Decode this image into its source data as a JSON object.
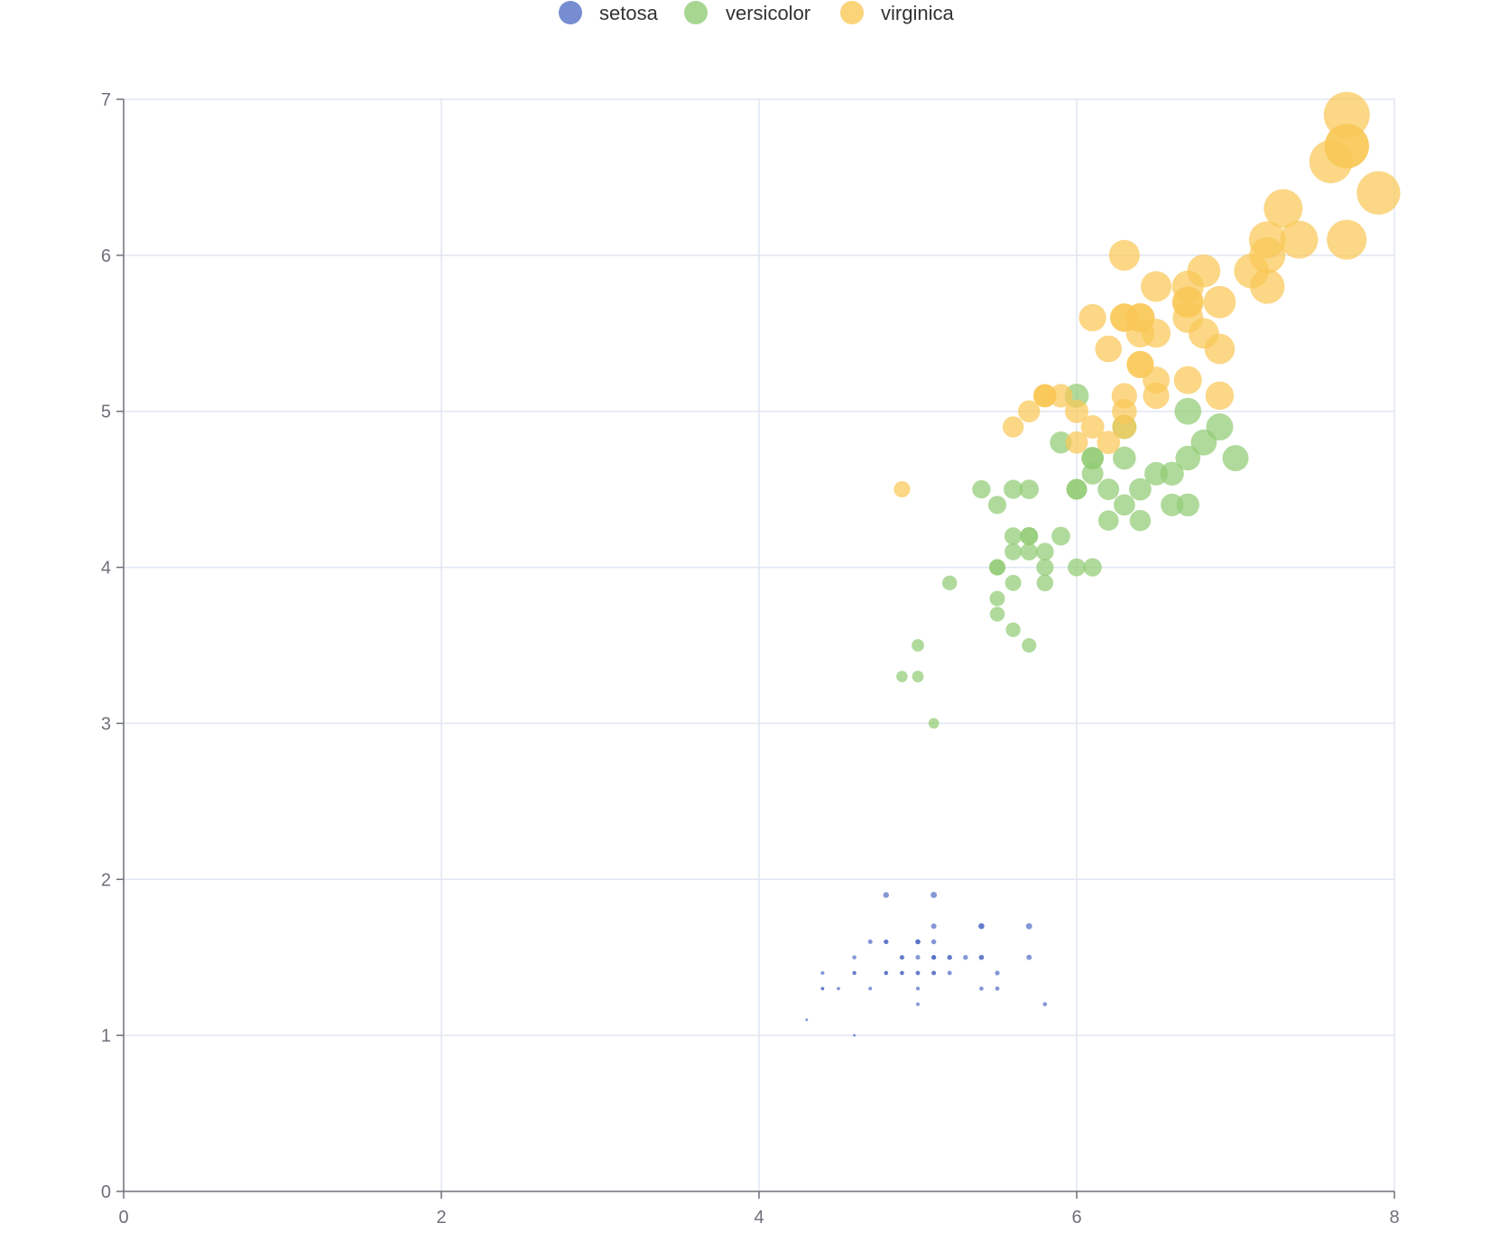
{
  "chart_data": {
    "type": "scatter",
    "title": "",
    "xlabel": "",
    "ylabel": "",
    "xlim": [
      0,
      8
    ],
    "ylim": [
      0,
      7
    ],
    "x_ticks": [
      "0",
      "2",
      "4",
      "6",
      "8"
    ],
    "y_ticks": [
      "0",
      "1",
      "2",
      "3",
      "4",
      "5",
      "6",
      "7"
    ],
    "grid": true,
    "legend_position": "top-center",
    "encoding": {
      "x": "sepal length",
      "y": "petal length",
      "size": "product of sepal length and petal length"
    },
    "series": [
      {
        "name": "setosa",
        "color": "#5470c6",
        "points": [
          [
            5.1,
            1.4
          ],
          [
            4.9,
            1.4
          ],
          [
            4.7,
            1.3
          ],
          [
            4.6,
            1.5
          ],
          [
            5.0,
            1.4
          ],
          [
            5.4,
            1.7
          ],
          [
            4.6,
            1.4
          ],
          [
            5.0,
            1.5
          ],
          [
            4.4,
            1.4
          ],
          [
            4.9,
            1.5
          ],
          [
            5.4,
            1.5
          ],
          [
            4.8,
            1.6
          ],
          [
            4.8,
            1.4
          ],
          [
            4.3,
            1.1
          ],
          [
            5.8,
            1.2
          ],
          [
            5.7,
            1.5
          ],
          [
            5.4,
            1.3
          ],
          [
            5.1,
            1.4
          ],
          [
            5.7,
            1.7
          ],
          [
            5.1,
            1.5
          ],
          [
            5.4,
            1.7
          ],
          [
            5.1,
            1.5
          ],
          [
            4.6,
            1.0
          ],
          [
            5.1,
            1.7
          ],
          [
            4.8,
            1.9
          ],
          [
            5.0,
            1.6
          ],
          [
            5.0,
            1.6
          ],
          [
            5.2,
            1.5
          ],
          [
            5.2,
            1.4
          ],
          [
            4.7,
            1.6
          ],
          [
            4.8,
            1.6
          ],
          [
            5.4,
            1.5
          ],
          [
            5.2,
            1.5
          ],
          [
            5.5,
            1.4
          ],
          [
            4.9,
            1.5
          ],
          [
            5.0,
            1.2
          ],
          [
            5.5,
            1.3
          ],
          [
            4.9,
            1.4
          ],
          [
            4.4,
            1.3
          ],
          [
            5.1,
            1.5
          ],
          [
            5.0,
            1.3
          ],
          [
            4.5,
            1.3
          ],
          [
            4.4,
            1.3
          ],
          [
            5.0,
            1.6
          ],
          [
            5.1,
            1.9
          ],
          [
            4.8,
            1.4
          ],
          [
            5.1,
            1.6
          ],
          [
            4.6,
            1.4
          ],
          [
            5.3,
            1.5
          ],
          [
            5.0,
            1.4
          ]
        ]
      },
      {
        "name": "versicolor",
        "color": "#91cc75",
        "points": [
          [
            7.0,
            4.7
          ],
          [
            6.4,
            4.5
          ],
          [
            6.9,
            4.9
          ],
          [
            5.5,
            4.0
          ],
          [
            6.5,
            4.6
          ],
          [
            5.7,
            4.5
          ],
          [
            6.3,
            4.7
          ],
          [
            4.9,
            3.3
          ],
          [
            6.6,
            4.6
          ],
          [
            5.2,
            3.9
          ],
          [
            5.0,
            3.5
          ],
          [
            5.9,
            4.2
          ],
          [
            6.0,
            4.0
          ],
          [
            6.1,
            4.7
          ],
          [
            5.6,
            3.6
          ],
          [
            6.7,
            4.4
          ],
          [
            5.6,
            4.5
          ],
          [
            5.8,
            4.1
          ],
          [
            6.2,
            4.5
          ],
          [
            5.6,
            3.9
          ],
          [
            5.9,
            4.8
          ],
          [
            6.1,
            4.0
          ],
          [
            6.3,
            4.9
          ],
          [
            6.1,
            4.7
          ],
          [
            6.4,
            4.3
          ],
          [
            6.6,
            4.4
          ],
          [
            6.8,
            4.8
          ],
          [
            6.7,
            5.0
          ],
          [
            6.0,
            4.5
          ],
          [
            5.7,
            3.5
          ],
          [
            5.5,
            3.8
          ],
          [
            5.5,
            3.7
          ],
          [
            5.8,
            3.9
          ],
          [
            6.0,
            5.1
          ],
          [
            5.4,
            4.5
          ],
          [
            6.0,
            4.5
          ],
          [
            6.7,
            4.7
          ],
          [
            6.3,
            4.4
          ],
          [
            5.6,
            4.1
          ],
          [
            5.5,
            4.0
          ],
          [
            5.5,
            4.4
          ],
          [
            6.1,
            4.6
          ],
          [
            5.8,
            4.0
          ],
          [
            5.0,
            3.3
          ],
          [
            5.6,
            4.2
          ],
          [
            5.7,
            4.2
          ],
          [
            5.7,
            4.2
          ],
          [
            6.2,
            4.3
          ],
          [
            5.1,
            3.0
          ],
          [
            5.7,
            4.1
          ]
        ]
      },
      {
        "name": "virginica",
        "color": "#fac858",
        "points": [
          [
            6.3,
            6.0
          ],
          [
            5.8,
            5.1
          ],
          [
            7.1,
            5.9
          ],
          [
            6.3,
            5.6
          ],
          [
            6.5,
            5.8
          ],
          [
            7.6,
            6.6
          ],
          [
            4.9,
            4.5
          ],
          [
            7.3,
            6.3
          ],
          [
            6.7,
            5.8
          ],
          [
            7.2,
            6.1
          ],
          [
            6.5,
            5.1
          ],
          [
            6.4,
            5.3
          ],
          [
            6.8,
            5.5
          ],
          [
            5.7,
            5.0
          ],
          [
            5.8,
            5.1
          ],
          [
            6.4,
            5.3
          ],
          [
            6.5,
            5.5
          ],
          [
            7.7,
            6.7
          ],
          [
            7.7,
            6.9
          ],
          [
            6.0,
            5.0
          ],
          [
            6.9,
            5.7
          ],
          [
            5.6,
            4.9
          ],
          [
            7.7,
            6.7
          ],
          [
            6.3,
            4.9
          ],
          [
            6.7,
            5.7
          ],
          [
            7.2,
            6.0
          ],
          [
            6.2,
            4.8
          ],
          [
            6.1,
            4.9
          ],
          [
            6.4,
            5.6
          ],
          [
            7.2,
            5.8
          ],
          [
            7.4,
            6.1
          ],
          [
            7.9,
            6.4
          ],
          [
            6.4,
            5.6
          ],
          [
            6.3,
            5.1
          ],
          [
            6.1,
            5.6
          ],
          [
            7.7,
            6.1
          ],
          [
            6.3,
            5.6
          ],
          [
            6.4,
            5.5
          ],
          [
            6.0,
            4.8
          ],
          [
            6.9,
            5.4
          ],
          [
            6.7,
            5.6
          ],
          [
            6.9,
            5.1
          ],
          [
            5.8,
            5.1
          ],
          [
            6.8,
            5.9
          ],
          [
            6.7,
            5.7
          ],
          [
            6.7,
            5.2
          ],
          [
            6.3,
            5.0
          ],
          [
            6.5,
            5.2
          ],
          [
            6.2,
            5.4
          ],
          [
            5.9,
            5.1
          ]
        ]
      }
    ]
  }
}
